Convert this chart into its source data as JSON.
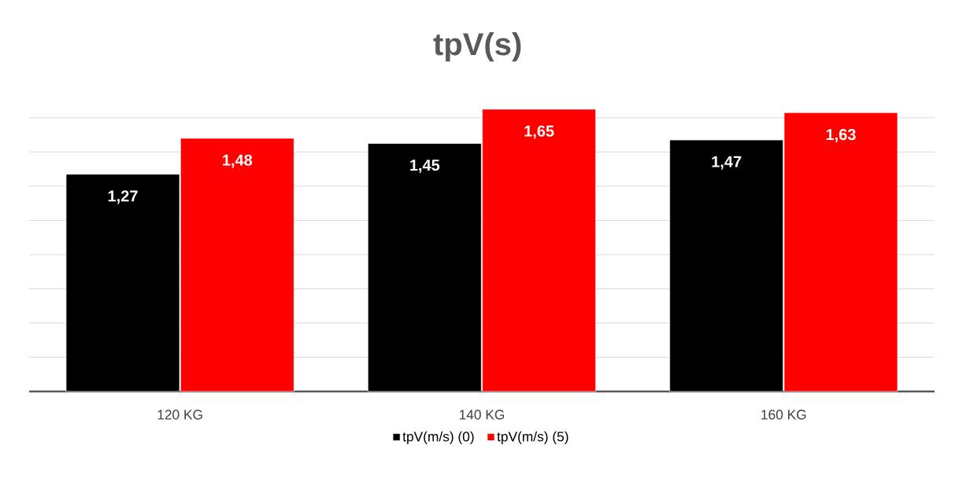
{
  "chart_data": {
    "type": "bar",
    "title": "tpV(s)",
    "categories": [
      "120 KG",
      "140 KG",
      "160 KG"
    ],
    "series": [
      {
        "name": "tpV(m/s) (0)",
        "color": "#000000",
        "values": [
          1.27,
          1.45,
          1.47
        ],
        "value_labels": [
          "1,27",
          "1,45",
          "1,47"
        ]
      },
      {
        "name": "tpV(m/s) (5)",
        "color": "#ff0000",
        "values": [
          1.48,
          1.65,
          1.63
        ],
        "value_labels": [
          "1,48",
          "1,65",
          "1,63"
        ]
      }
    ],
    "tick_labels": "x",
    "grid": "y",
    "legend": "bottom"
  }
}
